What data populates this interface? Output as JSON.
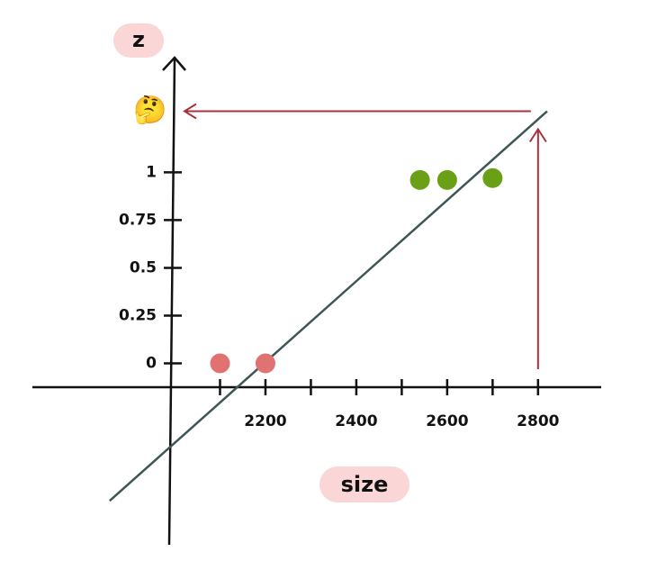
{
  "chart_data": {
    "type": "scatter",
    "x_label": "size",
    "y_label": "z",
    "series": [
      {
        "color": "#e07272",
        "x": [
          2100,
          2200
        ],
        "values": [
          0,
          0
        ]
      },
      {
        "color": "#69a016",
        "x": [
          2540,
          2600,
          2700
        ],
        "values": [
          0.96,
          0.96,
          0.97
        ]
      }
    ],
    "fit_line": {
      "color": "#3f5656",
      "x": [
        1857,
        2820
      ],
      "values": [
        -0.72,
        1.32
      ]
    },
    "prediction": {
      "label": "🤔",
      "x": 2800,
      "value": 1.32,
      "color": "#a8323e"
    },
    "xlim": [
      1687,
      2939
    ],
    "ylim": [
      -0.95,
      1.61
    ],
    "xticks": [
      2200,
      2400,
      2600,
      2800
    ],
    "xminorticks": [
      2100,
      2300,
      2500,
      2700
    ],
    "yticks": [
      0,
      0.25,
      0.5,
      0.75,
      1
    ]
  }
}
